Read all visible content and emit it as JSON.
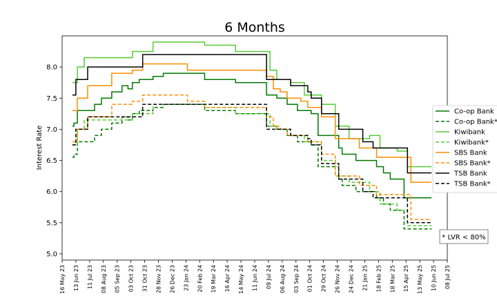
{
  "chart_data": {
    "type": "line",
    "title": "6 Months",
    "xlabel": "",
    "ylabel": "Interest Rate",
    "ylim": [
      4.9,
      8.5
    ],
    "xlim": [
      "2023-05-16",
      "2025-07-08"
    ],
    "y_ticks": [
      "5.0",
      "5.5",
      "6.0",
      "6.5",
      "7.0",
      "7.5",
      "8.0"
    ],
    "x_ticks": [
      "16 May 23",
      "13 Jun 23",
      "11 Jul 23",
      "08 Aug 23",
      "05 Sep 23",
      "03 Oct 23",
      "31 Oct 23",
      "28 Nov 23",
      "26 Dec 23",
      "23 Jan 24",
      "20 Feb 24",
      "19 Mar 24",
      "16 Apr 24",
      "14 May 24",
      "11 Jun 24",
      "09 Jul 24",
      "06 Aug 24",
      "03 Sep 24",
      "01 Oct 24",
      "29 Oct 24",
      "26 Nov 24",
      "24 Dec 24",
      "21 Jan 25",
      "18 Feb 25",
      "18 Mar 25",
      "15 Apr 25",
      "13 May 25",
      "10 Jun 25",
      "08 Jul 25"
    ],
    "grid": false,
    "legend_position": "right",
    "annotation": "* LVR < 80%",
    "series": [
      {
        "name": "Co-op Bank",
        "color": "#007700",
        "dash": false,
        "points": [
          [
            "2023-06-06",
            7.05
          ],
          [
            "2023-06-09",
            7.1
          ],
          [
            "2023-06-16",
            7.3
          ],
          [
            "2023-07-07",
            7.3
          ],
          [
            "2023-07-21",
            7.4
          ],
          [
            "2023-08-04",
            7.5
          ],
          [
            "2023-08-25",
            7.6
          ],
          [
            "2023-09-15",
            7.7
          ],
          [
            "2023-09-27",
            7.65
          ],
          [
            "2023-10-06",
            7.75
          ],
          [
            "2023-10-20",
            7.8
          ],
          [
            "2023-11-17",
            7.85
          ],
          [
            "2023-12-08",
            7.9
          ],
          [
            "2024-03-01",
            7.8
          ],
          [
            "2024-05-03",
            7.75
          ],
          [
            "2024-07-05",
            7.55
          ],
          [
            "2024-07-26",
            7.5
          ],
          [
            "2024-08-16",
            7.4
          ],
          [
            "2024-09-06",
            7.3
          ],
          [
            "2024-10-04",
            7.25
          ],
          [
            "2024-10-18",
            6.9
          ],
          [
            "2024-11-29",
            6.7
          ],
          [
            "2024-12-06",
            6.6
          ],
          [
            "2025-01-03",
            6.5
          ],
          [
            "2025-02-14",
            6.4
          ],
          [
            "2025-02-28",
            6.3
          ],
          [
            "2025-03-14",
            6.2
          ],
          [
            "2025-04-11",
            5.9
          ],
          [
            "2025-06-06",
            5.9
          ]
        ]
      },
      {
        "name": "Co-op Bank*",
        "color": "#007700",
        "dash": true,
        "points": [
          [
            "2023-06-06",
            6.55
          ],
          [
            "2023-06-09",
            6.6
          ],
          [
            "2023-06-16",
            6.8
          ],
          [
            "2023-07-07",
            6.8
          ],
          [
            "2023-07-21",
            6.9
          ],
          [
            "2023-08-04",
            7.0
          ],
          [
            "2023-08-25",
            7.1
          ],
          [
            "2023-09-15",
            7.2
          ],
          [
            "2023-09-27",
            7.15
          ],
          [
            "2023-10-06",
            7.25
          ],
          [
            "2023-10-20",
            7.3
          ],
          [
            "2023-11-17",
            7.35
          ],
          [
            "2023-12-08",
            7.4
          ],
          [
            "2024-03-01",
            7.3
          ],
          [
            "2024-05-03",
            7.25
          ],
          [
            "2024-07-05",
            7.05
          ],
          [
            "2024-07-26",
            7.0
          ],
          [
            "2024-08-16",
            6.9
          ],
          [
            "2024-09-06",
            6.8
          ],
          [
            "2024-10-04",
            6.75
          ],
          [
            "2024-10-18",
            6.4
          ],
          [
            "2024-11-29",
            6.2
          ],
          [
            "2024-12-06",
            6.1
          ],
          [
            "2025-01-03",
            6.0
          ],
          [
            "2025-02-14",
            5.9
          ],
          [
            "2025-02-28",
            5.8
          ],
          [
            "2025-03-14",
            5.7
          ],
          [
            "2025-04-11",
            5.4
          ],
          [
            "2025-06-06",
            5.4
          ]
        ]
      },
      {
        "name": "Kiwibank",
        "color": "#55cc33",
        "dash": false,
        "points": [
          [
            "2023-06-06",
            7.75
          ],
          [
            "2023-06-16",
            8.0
          ],
          [
            "2023-06-30",
            8.15
          ],
          [
            "2023-10-06",
            8.25
          ],
          [
            "2023-11-17",
            8.4
          ],
          [
            "2024-03-01",
            8.35
          ],
          [
            "2024-05-03",
            8.25
          ],
          [
            "2024-07-12",
            7.95
          ],
          [
            "2024-07-26",
            7.8
          ],
          [
            "2024-08-23",
            7.75
          ],
          [
            "2024-09-20",
            7.55
          ],
          [
            "2024-10-25",
            7.4
          ],
          [
            "2024-11-22",
            7.05
          ],
          [
            "2024-12-20",
            6.85
          ],
          [
            "2025-01-31",
            6.9
          ],
          [
            "2025-02-21",
            6.7
          ],
          [
            "2025-03-28",
            6.65
          ],
          [
            "2025-04-18",
            6.4
          ],
          [
            "2025-06-06",
            6.4
          ]
        ]
      },
      {
        "name": "Kiwibank*",
        "color": "#55cc33",
        "dash": true,
        "points": [
          [
            "2023-06-06",
            6.75
          ],
          [
            "2023-06-16",
            7.0
          ],
          [
            "2023-06-30",
            7.15
          ],
          [
            "2023-10-06",
            7.25
          ],
          [
            "2023-11-17",
            7.4
          ],
          [
            "2024-03-01",
            7.35
          ],
          [
            "2024-05-03",
            7.25
          ],
          [
            "2024-07-12",
            7.05
          ],
          [
            "2024-07-26",
            7.0
          ],
          [
            "2024-08-23",
            6.9
          ],
          [
            "2024-09-20",
            6.8
          ],
          [
            "2024-10-25",
            6.5
          ],
          [
            "2024-11-22",
            6.25
          ],
          [
            "2024-12-20",
            6.15
          ],
          [
            "2025-01-31",
            6.0
          ],
          [
            "2025-02-21",
            5.8
          ],
          [
            "2025-03-28",
            5.7
          ],
          [
            "2025-04-18",
            5.45
          ],
          [
            "2025-06-06",
            5.45
          ]
        ]
      },
      {
        "name": "SBS Bank",
        "color": "#ff8c00",
        "dash": false,
        "points": [
          [
            "2023-06-06",
            7.3
          ],
          [
            "2023-06-16",
            7.5
          ],
          [
            "2023-07-07",
            7.7
          ],
          [
            "2023-08-25",
            7.9
          ],
          [
            "2023-10-06",
            7.95
          ],
          [
            "2023-10-27",
            8.05
          ],
          [
            "2024-01-26",
            7.95
          ],
          [
            "2024-07-05",
            7.85
          ],
          [
            "2024-07-19",
            7.65
          ],
          [
            "2024-08-02",
            7.6
          ],
          [
            "2024-08-16",
            7.5
          ],
          [
            "2024-09-13",
            7.45
          ],
          [
            "2024-09-27",
            7.35
          ],
          [
            "2024-10-25",
            7.2
          ],
          [
            "2024-11-22",
            6.85
          ],
          [
            "2025-01-10",
            6.7
          ],
          [
            "2025-02-14",
            6.55
          ],
          [
            "2025-04-25",
            6.15
          ],
          [
            "2025-06-06",
            6.15
          ]
        ]
      },
      {
        "name": "SBS Bank*",
        "color": "#ff8c00",
        "dash": true,
        "points": [
          [
            "2023-06-06",
            6.8
          ],
          [
            "2023-06-16",
            7.0
          ],
          [
            "2023-07-07",
            7.2
          ],
          [
            "2023-08-25",
            7.4
          ],
          [
            "2023-10-06",
            7.45
          ],
          [
            "2023-10-27",
            7.55
          ],
          [
            "2024-01-26",
            7.45
          ],
          [
            "2024-03-01",
            7.35
          ],
          [
            "2024-07-05",
            7.2
          ],
          [
            "2024-07-19",
            7.05
          ],
          [
            "2024-08-02",
            7.0
          ],
          [
            "2024-08-16",
            6.9
          ],
          [
            "2024-09-27",
            6.8
          ],
          [
            "2024-10-25",
            6.6
          ],
          [
            "2024-11-22",
            6.25
          ],
          [
            "2025-01-10",
            6.1
          ],
          [
            "2025-02-14",
            5.95
          ],
          [
            "2025-04-25",
            5.55
          ],
          [
            "2025-06-06",
            5.55
          ]
        ]
      },
      {
        "name": "TSB Bank",
        "color": "#000000",
        "dash": false,
        "points": [
          [
            "2023-06-06",
            7.55
          ],
          [
            "2023-06-13",
            7.8
          ],
          [
            "2023-07-07",
            8.0
          ],
          [
            "2023-10-27",
            8.2
          ],
          [
            "2024-07-05",
            7.8
          ],
          [
            "2024-08-23",
            7.7
          ],
          [
            "2024-09-27",
            7.6
          ],
          [
            "2024-10-04",
            7.5
          ],
          [
            "2024-10-25",
            7.25
          ],
          [
            "2024-11-29",
            7.0
          ],
          [
            "2025-01-17",
            6.8
          ],
          [
            "2025-02-07",
            6.7
          ],
          [
            "2025-04-18",
            6.3
          ],
          [
            "2025-06-06",
            6.3
          ]
        ]
      },
      {
        "name": "TSB Bank*",
        "color": "#000000",
        "dash": true,
        "points": [
          [
            "2023-06-06",
            6.75
          ],
          [
            "2023-06-13",
            7.0
          ],
          [
            "2023-07-07",
            7.2
          ],
          [
            "2023-10-27",
            7.4
          ],
          [
            "2024-07-05",
            7.0
          ],
          [
            "2024-08-23",
            6.9
          ],
          [
            "2024-09-27",
            6.85
          ],
          [
            "2024-10-04",
            6.75
          ],
          [
            "2024-10-25",
            6.45
          ],
          [
            "2024-11-29",
            6.2
          ],
          [
            "2025-01-17",
            6.0
          ],
          [
            "2025-02-07",
            5.9
          ],
          [
            "2025-04-18",
            5.5
          ],
          [
            "2025-06-06",
            5.5
          ]
        ]
      }
    ]
  }
}
